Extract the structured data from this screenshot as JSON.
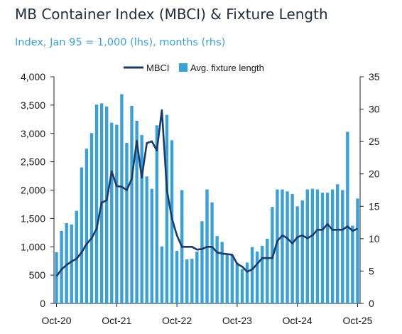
{
  "chart_data": {
    "type": "bar+line",
    "title": "MB Container Index (MBCI) & Fixture Length",
    "subtitle": "Index, Jan 95 = 1,000 (lhs), months (rhs)",
    "legend": {
      "placement": "top-center",
      "entries": [
        "MBCI",
        "Avg. fixture length"
      ]
    },
    "x_tick_labels": [
      "Oct-20",
      "Oct-21",
      "Oct-22",
      "Oct-23",
      "Oct-24",
      "Oct-25"
    ],
    "x_tick_month_index": [
      0,
      12,
      24,
      36,
      48,
      60
    ],
    "months": [
      "Oct-20",
      "Nov-20",
      "Dec-20",
      "Jan-21",
      "Feb-21",
      "Mar-21",
      "Apr-21",
      "May-21",
      "Jun-21",
      "Jul-21",
      "Aug-21",
      "Sep-21",
      "Oct-21",
      "Nov-21",
      "Dec-21",
      "Jan-22",
      "Feb-22",
      "Mar-22",
      "Apr-22",
      "May-22",
      "Jun-22",
      "Jul-22",
      "Aug-22",
      "Sep-22",
      "Oct-22",
      "Nov-22",
      "Dec-22",
      "Jan-23",
      "Feb-23",
      "Mar-23",
      "Apr-23",
      "May-23",
      "Jun-23",
      "Jul-23",
      "Aug-23",
      "Sep-23",
      "Oct-23",
      "Nov-23",
      "Dec-23",
      "Jan-24",
      "Feb-24",
      "Mar-24",
      "Apr-24",
      "May-24",
      "Jun-24",
      "Jul-24",
      "Aug-24",
      "Sep-24",
      "Oct-24",
      "Nov-24",
      "Dec-24",
      "Jan-25",
      "Feb-25",
      "Mar-25",
      "Apr-25",
      "May-25",
      "Jun-25",
      "Jul-25",
      "Aug-25",
      "Sep-25",
      "Oct-25"
    ],
    "left_axis": {
      "ylim": [
        0,
        4000
      ],
      "ticks": [
        "0",
        "500",
        "1,000",
        "1,500",
        "2,000",
        "2,500",
        "3,000",
        "3,500",
        "4,000"
      ],
      "tick_values": [
        0,
        500,
        1000,
        1500,
        2000,
        2500,
        3000,
        3500,
        4000
      ]
    },
    "right_axis": {
      "ylim": [
        0,
        35
      ],
      "ticks": [
        "0",
        "5",
        "10",
        "15",
        "20",
        "25",
        "30",
        "35"
      ],
      "tick_values": [
        0,
        5,
        10,
        15,
        20,
        25,
        30,
        35
      ]
    },
    "series": [
      {
        "name": "Avg. fixture length",
        "type": "bar",
        "axis": "right",
        "color": "#3aa0d8",
        "values": [
          7.9,
          11.2,
          12.4,
          12.2,
          14.3,
          21.0,
          23.9,
          26.3,
          30.7,
          30.9,
          30.4,
          27.9,
          27.6,
          32.3,
          24.8,
          30.5,
          28.2,
          26.0,
          19.6,
          17.7,
          27.5,
          8.8,
          29.1,
          25.2,
          8.1,
          17.5,
          6.8,
          6.9,
          8.0,
          12.7,
          17.6,
          15.6,
          10.4,
          9.5,
          7.5,
          7.5,
          6.3,
          5.3,
          6.3,
          8.7,
          8.0,
          8.9,
          10.0,
          14.9,
          17.6,
          17.6,
          17.3,
          16.9,
          15.0,
          15.9,
          17.6,
          17.7,
          17.6,
          17.1,
          17.1,
          17.6,
          18.4,
          17.5,
          26.5,
          12.0,
          16.2
        ]
      },
      {
        "name": "MBCI",
        "type": "line",
        "axis": "left",
        "color": "#1b3a6b",
        "values": [
          480,
          600,
          680,
          740,
          790,
          900,
          1050,
          1150,
          1320,
          1780,
          1820,
          2330,
          2070,
          2060,
          2000,
          2200,
          2870,
          2220,
          2830,
          2860,
          2700,
          3410,
          2000,
          1500,
          1200,
          1000,
          1000,
          1000,
          950,
          960,
          1000,
          1000,
          900,
          880,
          870,
          860,
          700,
          650,
          560,
          600,
          700,
          800,
          800,
          800,
          1100,
          1200,
          1150,
          1060,
          1170,
          1200,
          1150,
          1200,
          1300,
          1300,
          1400,
          1300,
          1300,
          1300,
          1360,
          1280,
          1320
        ]
      }
    ]
  }
}
